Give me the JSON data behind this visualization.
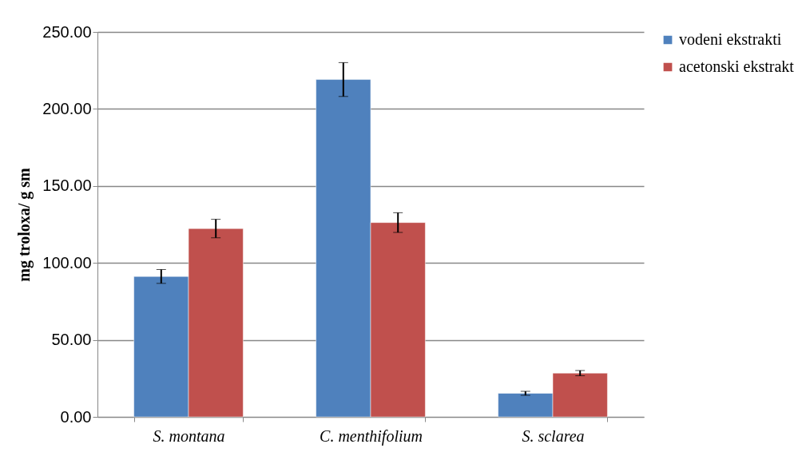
{
  "chart_data": {
    "type": "bar",
    "ylabel": "mg troloxa/ g sm",
    "categories": [
      "S. montana",
      "C. menthifolium",
      "S. sclarea"
    ],
    "series": [
      {
        "name": "vodeni ekstrakti",
        "color": "#4f81bd",
        "values": [
          91.2,
          219.1,
          15.3
        ],
        "errors": [
          4.5,
          11,
          1.3
        ]
      },
      {
        "name": "acetonski ekstrakt",
        "color": "#c0504d",
        "values": [
          122.3,
          126.2,
          28.4
        ],
        "errors": [
          6,
          6.4,
          1.7
        ]
      }
    ],
    "ylim": [
      0,
      250
    ],
    "yticks": [
      {
        "value": 0,
        "label": "0.00"
      },
      {
        "value": 50,
        "label": "50.00"
      },
      {
        "value": 100,
        "label": "100.00"
      },
      {
        "value": 150,
        "label": "150.00"
      },
      {
        "value": 200,
        "label": "200.00"
      },
      {
        "value": 250,
        "label": "250.00"
      }
    ],
    "grid": "y",
    "legend": "right"
  }
}
